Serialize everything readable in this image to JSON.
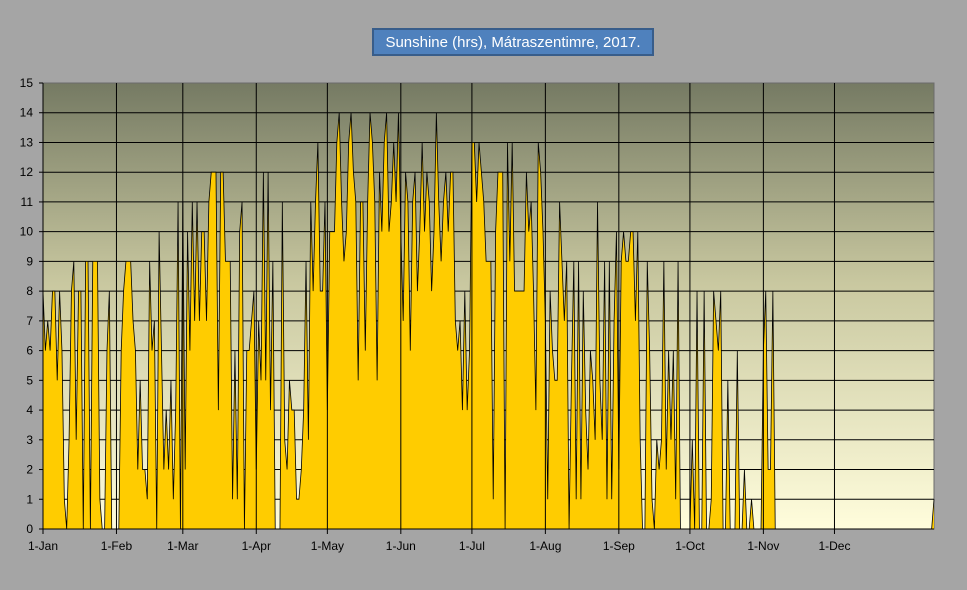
{
  "chart_data": {
    "type": "area",
    "title": "Sunshine (hrs), Mátraszentimre, 2017.",
    "ylim": [
      0,
      15
    ],
    "yticks": [
      0,
      1,
      2,
      3,
      4,
      5,
      6,
      7,
      8,
      9,
      10,
      11,
      12,
      13,
      14,
      15
    ],
    "xticks": [
      {
        "label": "1-Jan",
        "day": 0
      },
      {
        "label": "1-Feb",
        "day": 31
      },
      {
        "label": "1-Mar",
        "day": 59
      },
      {
        "label": "1-Apr",
        "day": 90
      },
      {
        "label": "1-May",
        "day": 120
      },
      {
        "label": "1-Jun",
        "day": 151
      },
      {
        "label": "1-Jul",
        "day": 181
      },
      {
        "label": "1-Aug",
        "day": 212
      },
      {
        "label": "1-Sep",
        "day": 243
      },
      {
        "label": "1-Oct",
        "day": 273
      },
      {
        "label": "1-Nov",
        "day": 304
      },
      {
        "label": "1-Dec",
        "day": 334
      }
    ],
    "grid": true,
    "fill_color": "#ffcc00",
    "line_color": "#000000",
    "values": [
      8,
      6,
      7,
      6,
      8,
      8,
      5,
      8,
      6,
      1,
      0,
      3,
      8,
      9,
      3,
      8,
      8,
      0,
      9,
      9,
      0,
      9,
      9,
      9,
      1,
      0,
      0,
      6,
      8,
      0,
      0,
      0,
      0,
      6,
      8,
      9,
      9,
      9,
      7,
      6,
      2,
      5,
      2,
      2,
      1,
      9,
      6,
      7,
      0,
      10,
      6,
      2,
      4,
      2,
      5,
      1,
      4,
      11,
      0,
      11,
      2,
      10,
      6,
      11,
      7,
      11,
      7,
      10,
      10,
      7,
      11,
      12,
      12,
      12,
      4,
      12,
      12,
      9,
      9,
      9,
      1,
      6,
      1,
      10,
      11,
      0,
      6,
      6,
      7,
      8,
      2,
      7,
      5,
      12,
      5,
      12,
      4,
      9,
      0,
      0,
      0,
      11,
      3,
      2,
      5,
      4,
      4,
      1,
      1,
      2,
      4,
      9,
      3,
      11,
      8,
      11,
      13,
      8,
      8,
      11,
      4,
      10,
      10,
      10,
      13,
      14,
      11,
      9,
      10,
      13,
      14,
      12,
      11,
      5,
      11,
      11,
      6,
      11,
      14,
      13,
      11,
      5,
      12,
      10,
      13,
      14,
      10,
      11,
      13,
      11,
      14,
      10,
      7,
      12,
      11,
      6,
      11,
      12,
      8,
      10,
      13,
      10,
      12,
      11,
      8,
      10,
      14,
      11,
      9,
      11,
      12,
      10,
      12,
      12,
      7,
      6,
      7,
      4,
      8,
      4,
      6,
      13,
      13,
      11,
      13,
      12,
      11,
      9,
      9,
      9,
      1,
      10,
      12,
      12,
      12,
      0,
      13,
      9,
      13,
      8,
      8,
      8,
      8,
      8,
      12,
      10,
      11,
      8,
      4,
      13,
      12,
      10,
      7,
      1,
      8,
      6,
      5,
      5,
      11,
      9,
      7,
      9,
      0,
      5,
      9,
      1,
      9,
      1,
      8,
      4,
      2,
      6,
      5,
      3,
      11,
      5,
      3,
      9,
      1,
      9,
      1,
      7,
      10,
      2,
      9,
      10,
      9,
      9,
      10,
      10,
      7,
      10,
      3,
      0,
      0,
      9,
      6,
      1,
      0,
      3,
      2,
      3,
      9,
      2,
      6,
      3,
      6,
      1,
      9,
      0,
      0,
      0,
      0,
      0,
      3,
      0,
      8,
      0,
      0,
      8,
      0,
      0,
      1,
      8,
      7,
      6,
      8,
      0,
      0,
      5,
      0,
      0,
      0,
      6,
      0,
      0,
      2,
      0,
      0,
      1,
      0,
      0,
      0,
      0,
      6,
      8,
      2,
      2,
      8,
      0,
      0,
      0,
      0,
      0,
      0,
      0,
      0,
      0,
      0,
      0,
      0,
      0,
      0,
      0,
      0,
      0,
      0,
      0,
      0,
      0,
      0,
      0,
      0,
      0,
      0,
      0,
      0,
      0,
      0,
      0,
      0,
      0,
      0,
      0,
      0,
      0,
      0,
      0,
      0,
      0,
      0,
      0,
      0,
      0,
      0,
      0,
      0,
      0,
      0,
      0,
      0,
      0,
      0,
      0,
      0,
      0,
      0,
      0,
      0,
      0,
      0,
      0,
      0,
      0,
      0,
      0,
      1
    ]
  }
}
